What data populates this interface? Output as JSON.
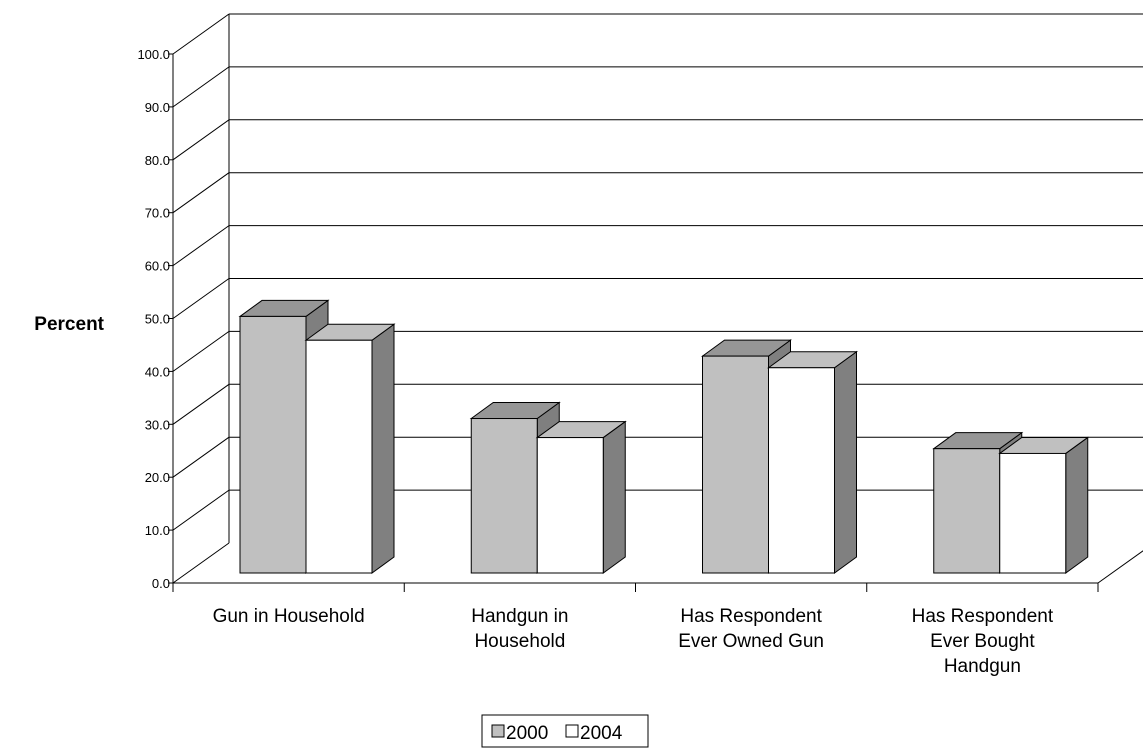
{
  "chart_data": {
    "type": "bar",
    "title": "",
    "xlabel": "",
    "ylabel": "Percent",
    "ylim": [
      0,
      100
    ],
    "yticks": [
      "0.0",
      "10.0",
      "20.0",
      "30.0",
      "40.0",
      "50.0",
      "60.0",
      "70.0",
      "80.0",
      "90.0",
      "100.0"
    ],
    "categories": [
      [
        "Gun in Household"
      ],
      [
        "Handgun in",
        "Household"
      ],
      [
        "Has Respondent",
        "Ever Owned Gun"
      ],
      [
        "Has Respondent",
        "Ever Bought",
        "Handgun"
      ]
    ],
    "series": [
      {
        "name": "2000",
        "values": [
          48.5,
          29.2,
          41.0,
          23.5
        ],
        "color": "#c0c0c0",
        "top": "#969696",
        "side": "#7f7f7f"
      },
      {
        "name": "2004",
        "values": [
          44.0,
          25.6,
          38.8,
          22.6
        ],
        "color": "#ffffff",
        "top": "#c0c0c0",
        "side": "#808080"
      }
    ],
    "grid": true,
    "legend": "bottom"
  }
}
